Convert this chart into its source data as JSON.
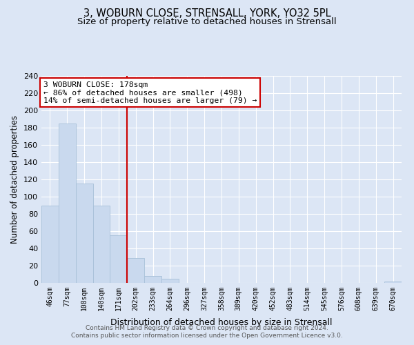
{
  "title": "3, WOBURN CLOSE, STRENSALL, YORK, YO32 5PL",
  "subtitle": "Size of property relative to detached houses in Strensall",
  "xlabel": "Distribution of detached houses by size in Strensall",
  "ylabel": "Number of detached properties",
  "bar_labels": [
    "46sqm",
    "77sqm",
    "108sqm",
    "140sqm",
    "171sqm",
    "202sqm",
    "233sqm",
    "264sqm",
    "296sqm",
    "327sqm",
    "358sqm",
    "389sqm",
    "420sqm",
    "452sqm",
    "483sqm",
    "514sqm",
    "545sqm",
    "576sqm",
    "608sqm",
    "639sqm",
    "670sqm"
  ],
  "bar_values": [
    90,
    185,
    115,
    90,
    55,
    29,
    8,
    5,
    0,
    0,
    0,
    0,
    0,
    0,
    0,
    0,
    0,
    0,
    0,
    0,
    2
  ],
  "bar_color": "#c9d9ee",
  "bar_edge_color": "#a8c0d8",
  "vline_index": 4,
  "vline_color": "#cc0000",
  "ylim": [
    0,
    240
  ],
  "yticks": [
    0,
    20,
    40,
    60,
    80,
    100,
    120,
    140,
    160,
    180,
    200,
    220,
    240
  ],
  "annotation_title": "3 WOBURN CLOSE: 178sqm",
  "annotation_line1": "← 86% of detached houses are smaller (498)",
  "annotation_line2": "14% of semi-detached houses are larger (79) →",
  "annotation_box_color": "#ffffff",
  "annotation_box_edge": "#cc0000",
  "bg_color": "#dce6f5",
  "grid_color": "#ffffff",
  "footer_line1": "Contains HM Land Registry data © Crown copyright and database right 2024.",
  "footer_line2": "Contains public sector information licensed under the Open Government Licence v3.0.",
  "title_fontsize": 10.5,
  "subtitle_fontsize": 9.5,
  "footer_fontsize": 6.5
}
